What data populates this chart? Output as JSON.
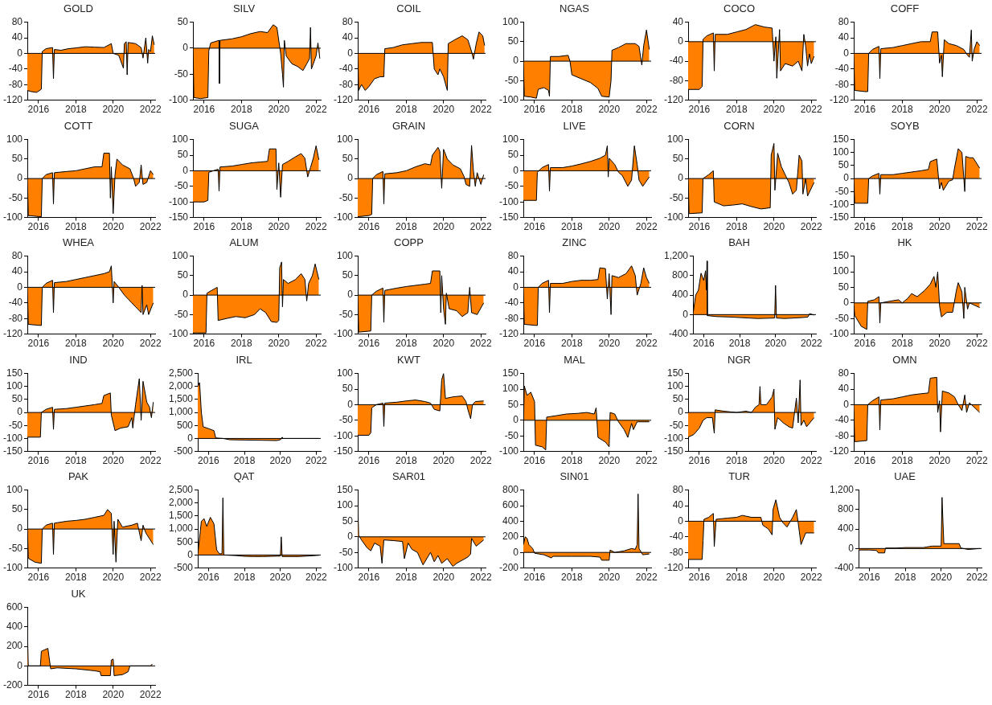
{
  "chart_data": [
    {
      "type": "area",
      "title": "GOLD",
      "color": "#ff8000",
      "xlim": [
        2015.4,
        2022.25
      ],
      "xticks": [
        2016,
        2018,
        2020,
        2022
      ],
      "ylim": [
        -120,
        80
      ],
      "yticks": [
        -120,
        -80,
        -40,
        0,
        40,
        80
      ],
      "x": [
        2015.4,
        2015.6,
        2015.9,
        2016.15,
        2016.2,
        2016.4,
        2016.75,
        2016.8,
        2016.85,
        2017.2,
        2017.6,
        2018.0,
        2018.5,
        2019.0,
        2019.5,
        2019.9,
        2020.0,
        2020.3,
        2020.55,
        2020.6,
        2020.7,
        2020.75,
        2020.8,
        2021.2,
        2021.5,
        2021.6,
        2021.75,
        2021.85,
        2021.9,
        2022.0,
        2022.1,
        2022.2
      ],
      "values": [
        -95,
        -98,
        -100,
        -92,
        5,
        12,
        15,
        -65,
        10,
        8,
        12,
        14,
        17,
        16,
        15,
        25,
        0,
        -5,
        -38,
        25,
        30,
        -55,
        28,
        25,
        15,
        -12,
        40,
        -25,
        10,
        5,
        45,
        22
      ]
    },
    {
      "type": "area",
      "title": "SILV",
      "color": "#ff8000",
      "xlim": [
        2015.4,
        2022.25
      ],
      "xticks": [
        2016,
        2018,
        2020,
        2022
      ],
      "ylim": [
        -100,
        50
      ],
      "yticks": [
        -100,
        -50,
        0,
        50
      ],
      "x": [
        2015.4,
        2015.45,
        2015.8,
        2016.2,
        2016.25,
        2016.35,
        2016.8,
        2016.82,
        2016.85,
        2017.5,
        2018.0,
        2018.5,
        2019.0,
        2019.4,
        2019.7,
        2019.9,
        2020.1,
        2020.2,
        2020.25,
        2020.3,
        2020.4,
        2020.7,
        2021.0,
        2021.3,
        2021.5,
        2021.65,
        2021.7,
        2021.75,
        2021.9,
        2022.0,
        2022.1,
        2022.2
      ],
      "values": [
        15,
        -95,
        -97,
        -95,
        -5,
        10,
        15,
        -68,
        15,
        18,
        22,
        28,
        32,
        30,
        45,
        40,
        -10,
        -50,
        -75,
        15,
        -15,
        -30,
        -35,
        -43,
        -30,
        -20,
        40,
        -40,
        -25,
        -15,
        10,
        -20
      ]
    },
    {
      "type": "area",
      "title": "COIL",
      "color": "#ff8000",
      "xlim": [
        2015.4,
        2022.25
      ],
      "xticks": [
        2016,
        2018,
        2020,
        2022
      ],
      "ylim": [
        -120,
        80
      ],
      "yticks": [
        -120,
        -80,
        -40,
        0,
        40,
        80
      ],
      "x": [
        2015.4,
        2015.45,
        2015.6,
        2015.8,
        2016.0,
        2016.3,
        2016.6,
        2016.8,
        2016.85,
        2017.3,
        2017.8,
        2018.3,
        2018.8,
        2019.4,
        2019.5,
        2019.7,
        2019.8,
        2020.0,
        2020.2,
        2020.25,
        2020.6,
        2021.0,
        2021.3,
        2021.5,
        2021.6,
        2021.75,
        2021.9,
        2022.1,
        2022.2
      ],
      "values": [
        5,
        -95,
        -80,
        -95,
        -85,
        -65,
        -60,
        -60,
        12,
        15,
        22,
        25,
        28,
        28,
        -40,
        -55,
        -40,
        -60,
        -95,
        25,
        35,
        45,
        35,
        5,
        -15,
        25,
        55,
        45,
        20
      ]
    },
    {
      "type": "area",
      "title": "NGAS",
      "color": "#ff8000",
      "xlim": [
        2015.4,
        2022.25
      ],
      "xticks": [
        2016,
        2018,
        2020,
        2022
      ],
      "ylim": [
        -100,
        100
      ],
      "yticks": [
        -100,
        -50,
        0,
        50,
        100
      ],
      "x": [
        2015.4,
        2015.45,
        2015.8,
        2016.1,
        2016.2,
        2016.5,
        2016.75,
        2016.8,
        2016.85,
        2017.3,
        2017.8,
        2017.9,
        2018.0,
        2018.5,
        2019.0,
        2019.4,
        2019.6,
        2020.0,
        2020.1,
        2020.15,
        2020.5,
        2020.9,
        2021.4,
        2021.6,
        2021.75,
        2021.85,
        2022.0,
        2022.15
      ],
      "values": [
        5,
        -90,
        -92,
        -95,
        -72,
        -68,
        -75,
        -90,
        12,
        12,
        15,
        0,
        -35,
        -45,
        -55,
        -70,
        -90,
        -92,
        -50,
        28,
        35,
        45,
        45,
        38,
        -10,
        40,
        80,
        30
      ]
    },
    {
      "type": "area",
      "title": "COCO",
      "color": "#ff8000",
      "xlim": [
        2015.4,
        2022.25
      ],
      "xticks": [
        2016,
        2018,
        2020,
        2022
      ],
      "ylim": [
        -120,
        40
      ],
      "yticks": [
        -120,
        -80,
        -40,
        0,
        40
      ],
      "x": [
        2015.4,
        2016.0,
        2016.15,
        2016.2,
        2016.4,
        2016.75,
        2016.8,
        2016.85,
        2017.5,
        2018.0,
        2018.5,
        2019.0,
        2019.5,
        2019.9,
        2020.0,
        2020.1,
        2020.15,
        2020.3,
        2020.35,
        2020.6,
        2021.0,
        2021.3,
        2021.5,
        2021.6,
        2021.7,
        2021.8,
        2021.9,
        2022.0,
        2022.15
      ],
      "values": [
        -98,
        -98,
        -92,
        5,
        12,
        18,
        -60,
        15,
        15,
        20,
        25,
        35,
        30,
        28,
        -40,
        10,
        -75,
        25,
        -60,
        -45,
        -50,
        -40,
        -60,
        15,
        -10,
        -50,
        -25,
        -45,
        -30
      ]
    },
    {
      "type": "area",
      "title": "COFF",
      "color": "#ff8000",
      "xlim": [
        2015.4,
        2022.25
      ],
      "xticks": [
        2016,
        2018,
        2020,
        2022
      ],
      "ylim": [
        -120,
        80
      ],
      "yticks": [
        -120,
        -80,
        -40,
        0,
        40,
        80
      ],
      "x": [
        2015.4,
        2015.45,
        2016.0,
        2016.15,
        2016.2,
        2016.4,
        2016.75,
        2016.8,
        2016.85,
        2017.5,
        2018.0,
        2018.5,
        2019.0,
        2019.5,
        2019.6,
        2019.9,
        2020.0,
        2020.1,
        2020.15,
        2020.25,
        2020.5,
        2020.9,
        2021.3,
        2021.5,
        2021.6,
        2021.7,
        2021.75,
        2021.85,
        2022.0,
        2022.15
      ],
      "values": [
        0,
        -95,
        -98,
        -98,
        0,
        10,
        18,
        -65,
        12,
        15,
        20,
        25,
        30,
        30,
        55,
        55,
        -25,
        -5,
        -60,
        35,
        25,
        20,
        10,
        -5,
        -10,
        60,
        -20,
        10,
        30,
        20
      ]
    },
    {
      "type": "area",
      "title": "COTT",
      "color": "#ff8000",
      "xlim": [
        2015.4,
        2022.25
      ],
      "xticks": [
        2016,
        2018,
        2020,
        2022
      ],
      "ylim": [
        -100,
        100
      ],
      "yticks": [
        -100,
        -50,
        0,
        50,
        100
      ],
      "x": [
        2015.4,
        2015.45,
        2016.15,
        2016.2,
        2016.4,
        2016.75,
        2016.8,
        2016.85,
        2017.5,
        2018.0,
        2018.5,
        2019.0,
        2019.4,
        2019.5,
        2019.8,
        2019.85,
        2019.9,
        2020.0,
        2020.1,
        2020.2,
        2020.5,
        2020.9,
        2021.1,
        2021.2,
        2021.4,
        2021.5,
        2021.6,
        2021.8,
        2022.0,
        2022.15
      ],
      "values": [
        5,
        -95,
        -98,
        0,
        10,
        15,
        -65,
        15,
        18,
        20,
        25,
        30,
        30,
        65,
        65,
        -50,
        30,
        -90,
        10,
        50,
        35,
        25,
        0,
        -20,
        -10,
        35,
        -15,
        -10,
        20,
        10
      ]
    },
    {
      "type": "area",
      "title": "SUGA",
      "color": "#ff8000",
      "xlim": [
        2015.4,
        2022.25
      ],
      "xticks": [
        2016,
        2018,
        2020,
        2022
      ],
      "ylim": [
        -150,
        100
      ],
      "yticks": [
        -150,
        -100,
        -50,
        0,
        50,
        100
      ],
      "x": [
        2015.4,
        2016.0,
        2016.2,
        2016.25,
        2016.5,
        2016.75,
        2016.8,
        2016.85,
        2017.5,
        2018.0,
        2018.5,
        2019.0,
        2019.4,
        2019.5,
        2019.85,
        2019.9,
        2020.0,
        2020.1,
        2020.2,
        2020.5,
        2020.9,
        2021.2,
        2021.4,
        2021.55,
        2021.7,
        2021.85,
        2022.0,
        2022.15
      ],
      "values": [
        -100,
        -100,
        -95,
        -5,
        0,
        5,
        -65,
        12,
        15,
        20,
        25,
        28,
        30,
        70,
        70,
        -60,
        25,
        -85,
        20,
        30,
        45,
        55,
        40,
        -20,
        10,
        40,
        80,
        35
      ]
    },
    {
      "type": "area",
      "title": "GRAIN",
      "color": "#ff8000",
      "xlim": [
        2015.4,
        2022.25
      ],
      "xticks": [
        2016,
        2018,
        2020,
        2022
      ],
      "ylim": [
        -100,
        100
      ],
      "yticks": [
        -100,
        -50,
        0,
        50,
        100
      ],
      "x": [
        2015.4,
        2016.0,
        2016.15,
        2016.2,
        2016.4,
        2016.75,
        2016.8,
        2016.85,
        2017.5,
        2018.0,
        2018.5,
        2019.0,
        2019.3,
        2019.4,
        2019.7,
        2019.8,
        2019.9,
        2020.0,
        2020.2,
        2020.5,
        2020.9,
        2021.1,
        2021.2,
        2021.4,
        2021.5,
        2021.6,
        2021.7,
        2021.8,
        2022.0,
        2022.15
      ],
      "values": [
        -98,
        -95,
        -92,
        0,
        10,
        18,
        -65,
        12,
        15,
        20,
        30,
        38,
        35,
        60,
        80,
        70,
        -25,
        75,
        50,
        35,
        25,
        5,
        -15,
        -20,
        85,
        20,
        -20,
        15,
        -15,
        10
      ]
    },
    {
      "type": "area",
      "title": "LIVE",
      "color": "#ff8000",
      "xlim": [
        2015.4,
        2022.25
      ],
      "xticks": [
        2016,
        2018,
        2020,
        2022
      ],
      "ylim": [
        -150,
        100
      ],
      "yticks": [
        -150,
        -100,
        -50,
        0,
        50,
        100
      ],
      "x": [
        2015.4,
        2016.1,
        2016.15,
        2016.4,
        2016.75,
        2016.8,
        2016.85,
        2017.5,
        2018.0,
        2018.5,
        2019.0,
        2019.5,
        2019.8,
        2019.9,
        2019.95,
        2020.0,
        2020.3,
        2020.5,
        2020.7,
        2021.0,
        2021.2,
        2021.35,
        2021.5,
        2021.6,
        2021.8,
        2022.15
      ],
      "values": [
        -95,
        -95,
        -5,
        10,
        20,
        -65,
        10,
        10,
        15,
        22,
        30,
        40,
        50,
        80,
        -20,
        40,
        20,
        -5,
        -15,
        -50,
        -30,
        80,
        20,
        -30,
        -50,
        -20
      ]
    },
    {
      "type": "area",
      "title": "CORN",
      "color": "#ff8000",
      "xlim": [
        2015.4,
        2022.25
      ],
      "xticks": [
        2016,
        2018,
        2020,
        2022
      ],
      "ylim": [
        -100,
        100
      ],
      "yticks": [
        -100,
        -50,
        0,
        50,
        100
      ],
      "x": [
        2015.4,
        2015.45,
        2016.15,
        2016.2,
        2016.5,
        2016.75,
        2016.8,
        2017.3,
        2017.8,
        2018.3,
        2018.8,
        2019.3,
        2019.8,
        2019.85,
        2020.0,
        2020.05,
        2020.2,
        2020.4,
        2020.6,
        2020.8,
        2021.0,
        2021.2,
        2021.35,
        2021.5,
        2021.55,
        2021.7,
        2021.8,
        2022.15
      ],
      "values": [
        5,
        -90,
        -88,
        0,
        10,
        20,
        -60,
        -70,
        -68,
        -65,
        -72,
        -78,
        -75,
        60,
        90,
        -30,
        65,
        30,
        10,
        -10,
        -40,
        -30,
        60,
        45,
        -40,
        0,
        -45,
        -10
      ]
    },
    {
      "type": "area",
      "title": "SOYB",
      "color": "#ff8000",
      "xlim": [
        2015.4,
        2022.25
      ],
      "xticks": [
        2016,
        2018,
        2020,
        2022
      ],
      "ylim": [
        -150,
        150
      ],
      "yticks": [
        -150,
        -100,
        -50,
        0,
        50,
        100,
        150
      ],
      "x": [
        2015.4,
        2015.45,
        2016.15,
        2016.2,
        2016.4,
        2016.75,
        2016.8,
        2016.85,
        2017.5,
        2018.0,
        2018.5,
        2019.0,
        2019.4,
        2019.5,
        2019.85,
        2020.0,
        2020.1,
        2020.2,
        2020.5,
        2020.7,
        2020.8,
        2021.0,
        2021.2,
        2021.3,
        2021.35,
        2021.4,
        2021.6,
        2021.8,
        2022.15
      ],
      "values": [
        5,
        -95,
        -95,
        0,
        10,
        20,
        -60,
        15,
        15,
        20,
        25,
        30,
        35,
        65,
        75,
        -40,
        -15,
        -45,
        -10,
        -5,
        40,
        115,
        100,
        0,
        -50,
        85,
        80,
        80,
        40
      ]
    },
    {
      "type": "area",
      "title": "WHEA",
      "color": "#ff8000",
      "xlim": [
        2015.4,
        2022.25
      ],
      "xticks": [
        2016,
        2018,
        2020,
        2022
      ],
      "ylim": [
        -120,
        80
      ],
      "yticks": [
        -120,
        -80,
        -40,
        0,
        40,
        80
      ],
      "x": [
        2015.4,
        2015.45,
        2016.15,
        2016.2,
        2016.4,
        2016.75,
        2016.8,
        2016.85,
        2017.5,
        2018.0,
        2018.5,
        2019.0,
        2019.5,
        2019.8,
        2019.9,
        2020.0,
        2020.05,
        2020.3,
        2020.6,
        2021.0,
        2021.3,
        2021.5,
        2021.55,
        2021.6,
        2021.8,
        2021.9,
        2022.15
      ],
      "values": [
        5,
        -95,
        -98,
        0,
        10,
        18,
        -65,
        12,
        15,
        20,
        25,
        30,
        35,
        40,
        55,
        -40,
        15,
        0,
        -20,
        -40,
        -55,
        -65,
        5,
        -70,
        -45,
        -70,
        -40
      ]
    },
    {
      "type": "area",
      "title": "ALUM",
      "color": "#ff8000",
      "xlim": [
        2015.4,
        2022.25
      ],
      "xticks": [
        2016,
        2018,
        2020,
        2022
      ],
      "ylim": [
        -100,
        100
      ],
      "yticks": [
        -100,
        -50,
        0,
        50,
        100
      ],
      "x": [
        2015.4,
        2016.1,
        2016.15,
        2016.4,
        2016.7,
        2016.75,
        2017.2,
        2017.7,
        2018.2,
        2018.7,
        2019.0,
        2019.3,
        2019.6,
        2019.9,
        2020.0,
        2020.05,
        2020.15,
        2020.2,
        2020.25,
        2020.5,
        2020.9,
        2021.2,
        2021.4,
        2021.5,
        2021.6,
        2021.8,
        2021.95,
        2022.15
      ],
      "values": [
        -97,
        -97,
        5,
        12,
        20,
        -65,
        -60,
        -55,
        -58,
        -50,
        -35,
        -45,
        -68,
        -70,
        -65,
        70,
        85,
        -30,
        40,
        30,
        40,
        55,
        40,
        -15,
        30,
        50,
        80,
        40
      ]
    },
    {
      "type": "area",
      "title": "COPP",
      "color": "#ff8000",
      "xlim": [
        2015.4,
        2022.25
      ],
      "xticks": [
        2016,
        2018,
        2020,
        2022
      ],
      "ylim": [
        -100,
        100
      ],
      "yticks": [
        -100,
        -50,
        0,
        50,
        100
      ],
      "x": [
        2015.4,
        2015.45,
        2016.1,
        2016.15,
        2016.4,
        2016.75,
        2016.8,
        2016.85,
        2017.5,
        2018.0,
        2018.5,
        2019.0,
        2019.3,
        2019.4,
        2019.8,
        2019.85,
        2019.9,
        2020.0,
        2020.1,
        2020.15,
        2020.3,
        2020.7,
        2021.0,
        2021.3,
        2021.4,
        2021.5,
        2021.8,
        2022.15
      ],
      "values": [
        5,
        -95,
        -92,
        0,
        10,
        18,
        -70,
        12,
        18,
        22,
        25,
        28,
        30,
        62,
        62,
        -45,
        50,
        -35,
        -75,
        5,
        -35,
        -40,
        -55,
        -45,
        20,
        -45,
        -50,
        -20
      ]
    },
    {
      "type": "area",
      "title": "ZINC",
      "color": "#ff8000",
      "xlim": [
        2015.4,
        2022.25
      ],
      "xticks": [
        2016,
        2018,
        2020,
        2022
      ],
      "ylim": [
        -120,
        80
      ],
      "yticks": [
        -120,
        -80,
        -40,
        0,
        40,
        80
      ],
      "x": [
        2015.4,
        2015.45,
        2016.15,
        2016.2,
        2016.4,
        2016.75,
        2016.8,
        2016.85,
        2017.5,
        2018.0,
        2018.5,
        2019.0,
        2019.4,
        2019.5,
        2019.8,
        2019.9,
        2020.0,
        2020.1,
        2020.15,
        2020.5,
        2020.9,
        2021.2,
        2021.4,
        2021.5,
        2021.7,
        2021.85,
        2022.0,
        2022.15
      ],
      "values": [
        5,
        -95,
        -98,
        0,
        10,
        18,
        -65,
        10,
        10,
        15,
        18,
        18,
        20,
        50,
        48,
        -30,
        35,
        -70,
        30,
        25,
        35,
        55,
        30,
        -20,
        10,
        50,
        25,
        10
      ]
    },
    {
      "type": "area",
      "title": "BAH",
      "color": "#ff8000",
      "xlim": [
        2015.4,
        2022.25
      ],
      "xticks": [
        2016,
        2018,
        2020,
        2022
      ],
      "ylim": [
        -400,
        1200
      ],
      "yticks": [
        -400,
        0,
        400,
        800,
        {
          "value": 1200,
          "label": "1,200"
        }
      ],
      "x": [
        2015.4,
        2015.55,
        2015.7,
        2015.85,
        2016.0,
        2016.1,
        2016.15,
        2016.18,
        2016.2,
        2016.7,
        2017.5,
        2018.0,
        2018.5,
        2019.0,
        2019.95,
        2020.0,
        2020.05,
        2020.5,
        2021.0,
        2021.5,
        2021.8,
        2021.9,
        2022.15
      ],
      "values": [
        0,
        400,
        500,
        850,
        700,
        900,
        500,
        1100,
        -20,
        -40,
        -50,
        -60,
        -70,
        -80,
        -70,
        600,
        -70,
        -80,
        -70,
        -60,
        -50,
        20,
        -10
      ]
    },
    {
      "type": "area",
      "title": "HK",
      "color": "#ff8000",
      "xlim": [
        2015.4,
        2022.25
      ],
      "xticks": [
        2016,
        2018,
        2020,
        2022
      ],
      "ylim": [
        -100,
        150
      ],
      "yticks": [
        -100,
        -50,
        0,
        50,
        100,
        150
      ],
      "x": [
        2015.4,
        2015.45,
        2015.6,
        2015.8,
        2016.1,
        2016.15,
        2016.5,
        2016.75,
        2016.8,
        2016.85,
        2017.3,
        2017.8,
        2018.0,
        2018.3,
        2018.5,
        2018.8,
        2019.2,
        2019.5,
        2019.7,
        2019.8,
        2019.9,
        2020.0,
        2020.1,
        2020.4,
        2020.7,
        2020.9,
        2021.0,
        2021.2,
        2021.3,
        2021.35,
        2021.5,
        2021.6,
        2022.15
      ],
      "values": [
        0,
        -40,
        -55,
        -75,
        -85,
        5,
        10,
        20,
        -65,
        0,
        5,
        10,
        0,
        15,
        30,
        20,
        40,
        60,
        85,
        50,
        100,
        -10,
        -45,
        -30,
        -30,
        40,
        65,
        35,
        -50,
        50,
        -20,
        0,
        -15
      ]
    },
    {
      "type": "area",
      "title": "IND",
      "color": "#ff8000",
      "xlim": [
        2015.4,
        2022.25
      ],
      "xticks": [
        2016,
        2018,
        2020,
        2022
      ],
      "ylim": [
        -150,
        150
      ],
      "yticks": [
        -150,
        -100,
        -50,
        0,
        50,
        100,
        150
      ],
      "x": [
        2015.4,
        2016.1,
        2016.15,
        2016.4,
        2016.75,
        2016.8,
        2016.85,
        2017.5,
        2018.0,
        2018.5,
        2019.0,
        2019.4,
        2019.5,
        2019.85,
        2019.9,
        2020.1,
        2020.4,
        2020.8,
        2021.0,
        2021.05,
        2021.2,
        2021.4,
        2021.5,
        2021.6,
        2021.8,
        2021.95,
        2022.05,
        2022.15
      ],
      "values": [
        -95,
        -95,
        0,
        12,
        20,
        -65,
        12,
        15,
        20,
        25,
        30,
        35,
        65,
        75,
        -10,
        -70,
        -60,
        -55,
        -20,
        -60,
        30,
        130,
        -30,
        120,
        40,
        20,
        -20,
        40
      ]
    },
    {
      "type": "area",
      "title": "IRL",
      "color": "#ff8000",
      "xlim": [
        2015.4,
        2022.25
      ],
      "xticks": [
        2016,
        2018,
        2020,
        2022
      ],
      "ylim": [
        -500,
        2500
      ],
      "yticks": [
        -500,
        0,
        500,
        {
          "value": 1000,
          "label": "1,000"
        },
        {
          "value": 1500,
          "label": "1,500"
        },
        {
          "value": 2000,
          "label": "2,000"
        },
        {
          "value": 2500,
          "label": "2,500"
        }
      ],
      "x": [
        2015.4,
        2015.5,
        2015.6,
        2015.7,
        2016.0,
        2016.3,
        2016.4,
        2016.8,
        2017.2,
        2018.0,
        2019.0,
        2019.8,
        2020.0,
        2020.1,
        2020.15,
        2022.15
      ],
      "values": [
        2000,
        2150,
        1000,
        450,
        380,
        300,
        20,
        0,
        -50,
        -60,
        -70,
        -80,
        -50,
        50,
        0,
        0
      ]
    },
    {
      "type": "area",
      "title": "KWT",
      "color": "#ff8000",
      "xlim": [
        2015.4,
        2022.25
      ],
      "xticks": [
        2016,
        2018,
        2020,
        2022
      ],
      "ylim": [
        -150,
        100
      ],
      "yticks": [
        -150,
        -100,
        -50,
        0,
        50,
        100
      ],
      "x": [
        2015.4,
        2016.0,
        2016.1,
        2016.15,
        2016.4,
        2016.75,
        2016.8,
        2016.85,
        2017.5,
        2018.0,
        2018.5,
        2019.0,
        2019.3,
        2019.5,
        2019.8,
        2019.9,
        2020.0,
        2020.1,
        2020.5,
        2021.0,
        2021.2,
        2021.3,
        2021.45,
        2021.55,
        2021.7,
        2022.15
      ],
      "values": [
        -98,
        -98,
        -90,
        -10,
        0,
        5,
        -70,
        5,
        8,
        12,
        15,
        10,
        5,
        -15,
        -20,
        80,
        100,
        20,
        25,
        28,
        10,
        -15,
        -45,
        0,
        10,
        12
      ]
    },
    {
      "type": "area",
      "title": "MAL",
      "color": "#ff8000",
      "xlim": [
        2015.4,
        2022.25
      ],
      "xticks": [
        2016,
        2018,
        2020,
        2022
      ],
      "ylim": [
        -100,
        150
      ],
      "yticks": [
        -100,
        -50,
        0,
        50,
        100,
        150
      ],
      "x": [
        2015.4,
        2015.45,
        2015.6,
        2015.8,
        2016.0,
        2016.05,
        2016.4,
        2016.6,
        2016.65,
        2017.2,
        2017.7,
        2018.3,
        2018.8,
        2019.2,
        2019.3,
        2019.4,
        2019.8,
        2020.0,
        2020.05,
        2020.3,
        2020.5,
        2020.8,
        2021.0,
        2021.2,
        2021.3,
        2021.5,
        2022.15
      ],
      "values": [
        -40,
        110,
        80,
        90,
        60,
        -80,
        -85,
        -95,
        10,
        15,
        20,
        22,
        25,
        20,
        40,
        -55,
        -70,
        -85,
        25,
        20,
        -5,
        -30,
        -55,
        -10,
        -30,
        -5,
        -5
      ]
    },
    {
      "type": "area",
      "title": "NGR",
      "color": "#ff8000",
      "xlim": [
        2015.4,
        2022.25
      ],
      "xticks": [
        2016,
        2018,
        2020,
        2022
      ],
      "ylim": [
        -150,
        150
      ],
      "yticks": [
        -150,
        -100,
        -50,
        0,
        50,
        100,
        150
      ],
      "x": [
        2015.4,
        2015.7,
        2016.0,
        2016.2,
        2016.4,
        2016.7,
        2016.8,
        2016.85,
        2017.3,
        2018.0,
        2018.5,
        2018.8,
        2019.0,
        2019.2,
        2019.25,
        2019.3,
        2019.6,
        2019.9,
        2020.0,
        2020.05,
        2020.2,
        2020.5,
        2020.8,
        2021.0,
        2021.2,
        2021.3,
        2021.4,
        2021.45,
        2021.6,
        2021.75,
        2022.15
      ],
      "values": [
        -95,
        -85,
        -60,
        -30,
        -20,
        -20,
        -80,
        10,
        5,
        0,
        5,
        0,
        20,
        30,
        100,
        30,
        30,
        60,
        90,
        -65,
        -20,
        -40,
        -55,
        -60,
        55,
        -40,
        125,
        -50,
        -30,
        -55,
        -20
      ]
    },
    {
      "type": "area",
      "title": "OMN",
      "color": "#ff8000",
      "xlim": [
        2015.4,
        2022.25
      ],
      "xticks": [
        2016,
        2018,
        2020,
        2022
      ],
      "ylim": [
        -120,
        80
      ],
      "yticks": [
        -120,
        -80,
        -40,
        0,
        40,
        80
      ],
      "x": [
        2015.4,
        2015.45,
        2016.1,
        2016.15,
        2016.4,
        2016.75,
        2016.8,
        2016.85,
        2017.5,
        2018.0,
        2018.5,
        2019.0,
        2019.4,
        2019.5,
        2019.85,
        2019.9,
        2020.0,
        2020.05,
        2020.15,
        2020.5,
        2020.8,
        2021.0,
        2021.2,
        2021.35,
        2021.45,
        2021.6,
        2022.15
      ],
      "values": [
        0,
        -95,
        -92,
        0,
        10,
        20,
        -65,
        12,
        15,
        20,
        25,
        28,
        30,
        68,
        70,
        -20,
        10,
        -70,
        35,
        30,
        20,
        0,
        -15,
        25,
        -20,
        5,
        -20
      ]
    },
    {
      "type": "area",
      "title": "PAK",
      "color": "#ff8000",
      "xlim": [
        2015.4,
        2022.25
      ],
      "xticks": [
        2016,
        2018,
        2020,
        2022
      ],
      "ylim": [
        -100,
        100
      ],
      "yticks": [
        -100,
        -50,
        0,
        50,
        100
      ],
      "x": [
        2015.4,
        2015.45,
        2015.8,
        2016.15,
        2016.2,
        2016.4,
        2016.75,
        2016.8,
        2016.85,
        2017.5,
        2018.0,
        2018.5,
        2019.0,
        2019.5,
        2019.7,
        2019.9,
        2020.0,
        2020.05,
        2020.15,
        2020.25,
        2020.5,
        2021.0,
        2021.3,
        2021.5,
        2021.6,
        2021.75,
        2022.15
      ],
      "values": [
        10,
        -75,
        -85,
        -88,
        0,
        10,
        15,
        -65,
        15,
        20,
        22,
        25,
        30,
        35,
        50,
        40,
        -65,
        20,
        -85,
        25,
        5,
        10,
        15,
        -30,
        10,
        -10,
        -40
      ]
    },
    {
      "type": "area",
      "title": "QAT",
      "color": "#ff8000",
      "xlim": [
        2015.4,
        2022.25
      ],
      "xticks": [
        2016,
        2018,
        2020,
        2022
      ],
      "ylim": [
        -500,
        2500
      ],
      "yticks": [
        -500,
        0,
        500,
        {
          "value": 1000,
          "label": "1,000"
        },
        {
          "value": 1500,
          "label": "1,500"
        },
        {
          "value": 2000,
          "label": "2,000"
        },
        {
          "value": 2500,
          "label": "2,500"
        }
      ],
      "x": [
        2015.4,
        2015.6,
        2015.75,
        2015.9,
        2016.1,
        2016.3,
        2016.45,
        2016.6,
        2016.75,
        2016.8,
        2016.85,
        2017.5,
        2018.0,
        2018.5,
        2019.0,
        2019.5,
        2020.0,
        2020.05,
        2020.1,
        2020.5,
        2021.0,
        2021.5,
        2022.15
      ],
      "values": [
        0,
        1300,
        1400,
        1100,
        1450,
        1200,
        200,
        50,
        50,
        2200,
        0,
        -20,
        -50,
        -60,
        -60,
        -50,
        -40,
        700,
        -60,
        -60,
        -60,
        -40,
        -10
      ]
    },
    {
      "type": "area",
      "title": "SAR01",
      "color": "#ff8000",
      "xlim": [
        2015.4,
        2022.25
      ],
      "xticks": [
        2016,
        2018,
        2020,
        2022
      ],
      "ylim": [
        -100,
        150
      ],
      "yticks": [
        -100,
        -50,
        0,
        50,
        100,
        150
      ],
      "x": [
        2015.4,
        2015.45,
        2015.6,
        2015.9,
        2016.1,
        2016.3,
        2016.6,
        2016.7,
        2016.8,
        2017.3,
        2017.8,
        2017.9,
        2018.1,
        2018.3,
        2018.6,
        2018.9,
        2019.1,
        2019.3,
        2019.5,
        2019.7,
        2019.9,
        2020.2,
        2020.5,
        2020.7,
        2021.0,
        2021.3,
        2021.45,
        2021.5,
        2021.75,
        2022.15
      ],
      "values": [
        110,
        5,
        -10,
        -35,
        -45,
        -20,
        -30,
        -85,
        -10,
        -12,
        -15,
        -70,
        -20,
        -40,
        -50,
        -90,
        -70,
        -50,
        -80,
        -60,
        -85,
        -70,
        -95,
        -85,
        -75,
        -65,
        -55,
        -5,
        -30,
        -10
      ]
    },
    {
      "type": "area",
      "title": "SIN01",
      "color": "#ff8000",
      "xlim": [
        2015.4,
        2022.25
      ],
      "xticks": [
        2016,
        2018,
        2020,
        2022
      ],
      "ylim": [
        -200,
        800
      ],
      "yticks": [
        -200,
        0,
        200,
        400,
        600,
        800
      ],
      "x": [
        2015.4,
        2015.5,
        2015.6,
        2015.7,
        2015.9,
        2016.0,
        2016.5,
        2016.9,
        2017.0,
        2018.0,
        2019.0,
        2019.5,
        2019.6,
        2020.0,
        2020.05,
        2020.3,
        2020.8,
        2021.2,
        2021.4,
        2021.5,
        2021.55,
        2021.6,
        2021.8,
        2022.15
      ],
      "values": [
        100,
        200,
        180,
        100,
        50,
        -10,
        -30,
        -70,
        -50,
        -50,
        -50,
        -60,
        -100,
        -100,
        30,
        0,
        20,
        50,
        40,
        100,
        750,
        50,
        -30,
        -20
      ]
    },
    {
      "type": "area",
      "title": "TUR",
      "color": "#ff8000",
      "xlim": [
        2015.4,
        2022.25
      ],
      "xticks": [
        2016,
        2018,
        2020,
        2022
      ],
      "ylim": [
        -120,
        80
      ],
      "yticks": [
        -120,
        -80,
        -40,
        0,
        40,
        80
      ],
      "x": [
        2015.4,
        2016.15,
        2016.2,
        2016.25,
        2016.5,
        2016.75,
        2016.8,
        2016.9,
        2017.5,
        2018.0,
        2018.3,
        2018.8,
        2019.3,
        2019.4,
        2019.7,
        2019.9,
        2019.95,
        2020.1,
        2020.3,
        2020.5,
        2020.7,
        2021.0,
        2021.2,
        2021.3,
        2021.45,
        2021.7,
        2022.15
      ],
      "values": [
        -98,
        -98,
        -50,
        5,
        10,
        20,
        -65,
        5,
        8,
        10,
        15,
        10,
        10,
        -10,
        -20,
        -35,
        30,
        55,
        10,
        -5,
        -15,
        10,
        30,
        -5,
        -60,
        -30,
        -30
      ]
    },
    {
      "type": "area",
      "title": "UAE",
      "color": "#ff8000",
      "xlim": [
        2015.4,
        2022.25
      ],
      "xticks": [
        2016,
        2018,
        2020,
        2022
      ],
      "ylim": [
        -400,
        1200
      ],
      "yticks": [
        -400,
        0,
        400,
        800,
        {
          "value": 1200,
          "label": "1,200"
        }
      ],
      "x": [
        2015.4,
        2016.0,
        2016.4,
        2016.5,
        2016.85,
        2016.9,
        2017.5,
        2018.0,
        2019.0,
        2019.5,
        2020.0,
        2020.05,
        2020.1,
        2020.15,
        2021.0,
        2021.1,
        2021.5,
        2022.15
      ],
      "values": [
        -30,
        -30,
        -40,
        -90,
        -90,
        10,
        10,
        20,
        20,
        50,
        50,
        1050,
        550,
        100,
        100,
        10,
        -20,
        0
      ]
    },
    {
      "type": "area",
      "title": "UK",
      "color": "#ff8000",
      "xlim": [
        2015.4,
        2022.25
      ],
      "xticks": [
        2016,
        2018,
        2020,
        2022
      ],
      "ylim": [
        -200,
        600
      ],
      "yticks": [
        -200,
        0,
        200,
        400,
        600
      ],
      "x": [
        2015.4,
        2015.45,
        2015.8,
        2016.1,
        2016.15,
        2016.5,
        2016.65,
        2017.0,
        2018.0,
        2019.0,
        2019.3,
        2019.35,
        2019.85,
        2019.9,
        2020.0,
        2020.05,
        2020.5,
        2020.8,
        2020.9,
        2022.0,
        2022.1
      ],
      "values": [
        400,
        0,
        0,
        0,
        150,
        180,
        -30,
        -20,
        -30,
        -50,
        -60,
        -100,
        -100,
        60,
        70,
        -100,
        -90,
        -60,
        0,
        0,
        20
      ]
    }
  ]
}
